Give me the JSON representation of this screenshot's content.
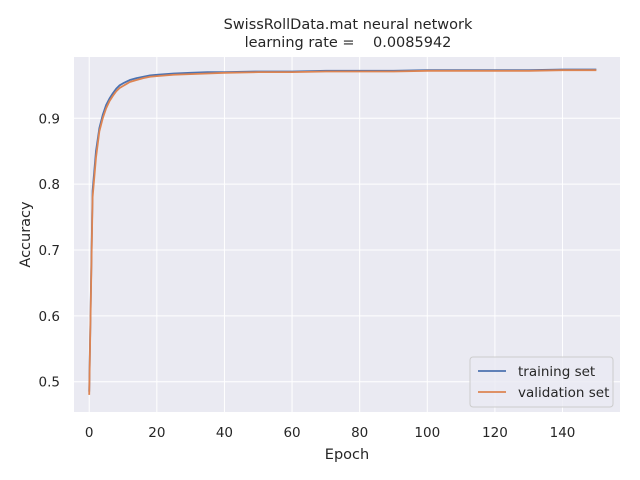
{
  "chart_data": {
    "type": "line",
    "title": "SwissRollData.mat neural network",
    "subtitle": "learning rate =    0.0085942",
    "xlabel": "Epoch",
    "ylabel": "Accuracy",
    "xlim": [
      -4.5,
      157
    ],
    "ylim": [
      0.454,
      0.993
    ],
    "xticks": [
      0,
      20,
      40,
      60,
      80,
      100,
      120,
      140
    ],
    "xtick_labels": [
      "0",
      "20",
      "40",
      "60",
      "80",
      "100",
      "120",
      "140"
    ],
    "yticks": [
      0.5,
      0.6,
      0.7,
      0.8,
      0.9
    ],
    "ytick_labels": [
      "0.5",
      "0.6",
      "0.7",
      "0.8",
      "0.9"
    ],
    "grid": true,
    "legend_position": "bottom-right",
    "series": [
      {
        "name": "training set",
        "color": "#4c72b0",
        "x": [
          0,
          1,
          2,
          3,
          4,
          5,
          6,
          7,
          8,
          9,
          10,
          12,
          14,
          16,
          18,
          20,
          25,
          30,
          35,
          40,
          50,
          60,
          70,
          80,
          90,
          100,
          110,
          120,
          130,
          140,
          150
        ],
        "y": [
          0.485,
          0.79,
          0.85,
          0.885,
          0.905,
          0.92,
          0.93,
          0.938,
          0.945,
          0.95,
          0.953,
          0.958,
          0.961,
          0.963,
          0.965,
          0.966,
          0.968,
          0.969,
          0.97,
          0.97,
          0.971,
          0.971,
          0.972,
          0.972,
          0.972,
          0.973,
          0.973,
          0.973,
          0.973,
          0.974,
          0.974
        ]
      },
      {
        "name": "validation set",
        "color": "#dd8452",
        "x": [
          0,
          1,
          2,
          3,
          4,
          5,
          6,
          7,
          8,
          9,
          10,
          12,
          14,
          16,
          18,
          20,
          25,
          30,
          35,
          40,
          50,
          60,
          70,
          80,
          90,
          100,
          110,
          120,
          130,
          140,
          150
        ],
        "y": [
          0.48,
          0.78,
          0.84,
          0.88,
          0.9,
          0.915,
          0.926,
          0.934,
          0.941,
          0.946,
          0.949,
          0.955,
          0.958,
          0.961,
          0.963,
          0.964,
          0.966,
          0.967,
          0.968,
          0.969,
          0.97,
          0.97,
          0.971,
          0.971,
          0.971,
          0.972,
          0.972,
          0.972,
          0.972,
          0.973,
          0.973
        ]
      }
    ]
  }
}
